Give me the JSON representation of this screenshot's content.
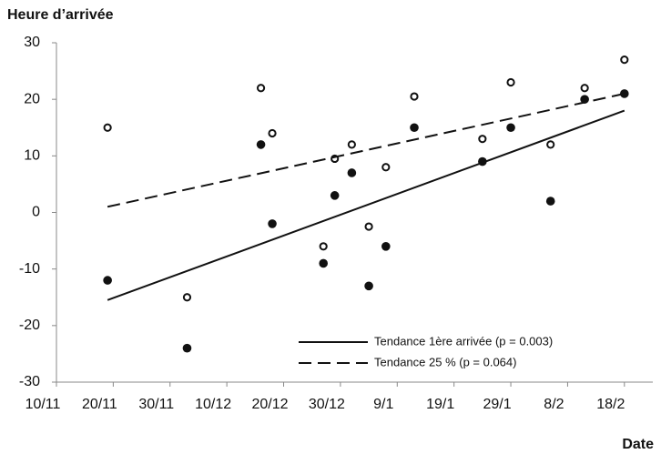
{
  "chart_data": {
    "type": "scatter",
    "ylabel": "Heure d’arrivée",
    "xlabel": "Date",
    "xlim": [
      "10/11",
      "23/2"
    ],
    "xticks": [
      "10/11",
      "20/11",
      "30/11",
      "10/12",
      "20/12",
      "30/12",
      "9/1",
      "19/1",
      "29/1",
      "8/2",
      "18/2"
    ],
    "ylim": [
      -30,
      30
    ],
    "yticks": [
      -30,
      -20,
      -10,
      0,
      10,
      20,
      30
    ],
    "series": [
      {
        "marker": "filled",
        "color": "#111111",
        "x": [
          "19/11",
          "3/12",
          "16/12",
          "18/12",
          "27/12",
          "29/12",
          "1/1",
          "4/1",
          "7/1",
          "12/1",
          "24/1",
          "29/1",
          "5/2",
          "11/2",
          "18/2"
        ],
        "values": [
          -12,
          -24,
          12,
          -2,
          -9,
          3,
          7,
          -13,
          -6,
          15,
          9,
          15,
          2,
          20,
          21
        ]
      },
      {
        "marker": "open",
        "color": "#111111",
        "x": [
          "19/11",
          "3/12",
          "16/12",
          "18/12",
          "27/12",
          "29/12",
          "1/1",
          "4/1",
          "7/1",
          "12/1",
          "24/1",
          "29/1",
          "5/2",
          "11/2",
          "18/2"
        ],
        "values": [
          15,
          -15,
          22,
          14,
          -6,
          9.5,
          12,
          -2.5,
          8,
          20.5,
          13,
          23,
          12,
          22,
          27
        ]
      },
      {
        "marker": "line",
        "dash": "solid",
        "color": "#111111",
        "name": "Tendance 1ère arrivée (p = 0.003)",
        "x": [
          "19/11",
          "18/2"
        ],
        "values": [
          -15.5,
          18
        ]
      },
      {
        "marker": "line",
        "dash": "dashed",
        "color": "#111111",
        "name": "Tendance 25 % (p = 0.064)",
        "x": [
          "19/11",
          "18/2"
        ],
        "values": [
          1,
          21
        ]
      }
    ]
  }
}
